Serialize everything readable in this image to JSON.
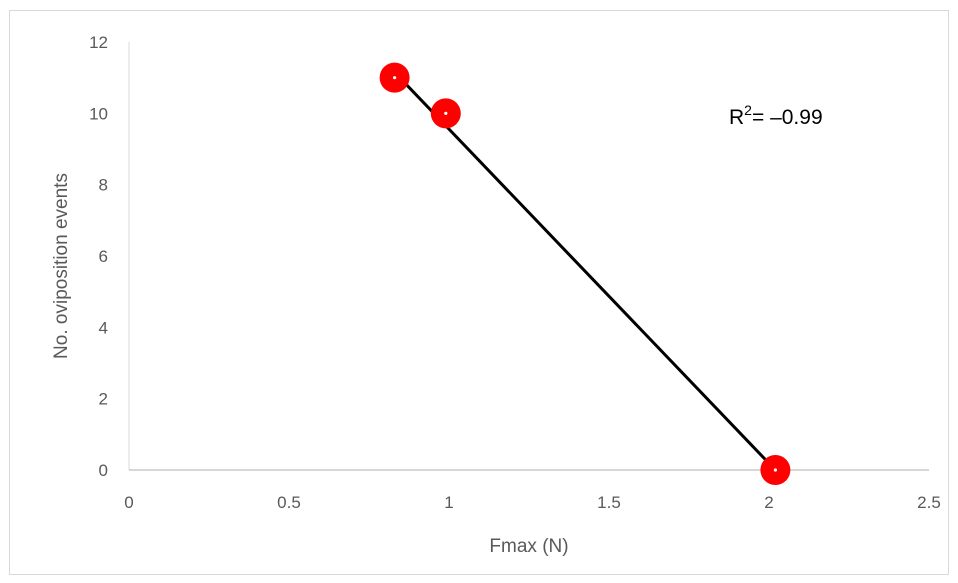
{
  "chart_data": {
    "type": "scatter",
    "xlabel": "Fmax (N)",
    "ylabel": "No. oviposition events",
    "xlim": [
      0,
      2.5
    ],
    "ylim": [
      0,
      12
    ],
    "x_ticks": [
      "0",
      "0.5",
      "1",
      "1.5",
      "2",
      "2.5"
    ],
    "y_ticks": [
      "0",
      "2",
      "4",
      "6",
      "8",
      "10",
      "12"
    ],
    "grid": false,
    "legend": "none",
    "series": [
      {
        "points": [
          {
            "x": 0.83,
            "y": 11
          },
          {
            "x": 0.99,
            "y": 10
          },
          {
            "x": 2.02,
            "y": 0
          }
        ],
        "color": "#ff0000"
      }
    ],
    "trendline": {
      "type": "linear",
      "from": {
        "x": 0.83,
        "y": 11.15
      },
      "to": {
        "x": 2.02,
        "y": 0
      },
      "color": "#000000"
    },
    "annotation": {
      "r_label": "R",
      "superscript": "2",
      "value_text": "= –0.99"
    }
  }
}
